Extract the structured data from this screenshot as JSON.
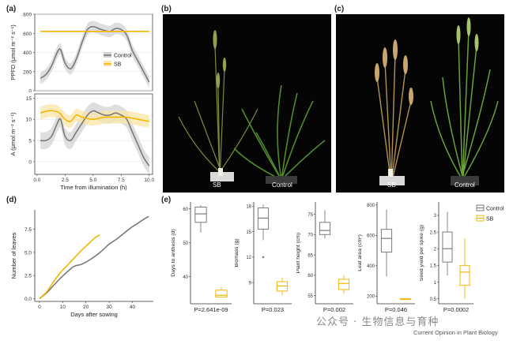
{
  "panel_labels": {
    "a": "(a)",
    "b": "(b)",
    "c": "(c)",
    "d": "(d)",
    "e": "(e)"
  },
  "photos": {
    "b": {
      "left_label": "SB",
      "right_label": "Control"
    },
    "c": {
      "left_label": "SB",
      "right_label": "Control"
    }
  },
  "colors": {
    "control": "#7a7a7a",
    "sb": "#f2b705",
    "band_control": "#d3d3d3",
    "band_sb": "#fae6a8"
  },
  "chart_data": [
    {
      "id": "a-top",
      "type": "line",
      "ylabel": "PPFD (μmol m⁻² s⁻¹)",
      "ylim": [
        0,
        800
      ],
      "yticks": [
        0,
        200,
        400,
        600,
        800
      ],
      "xlim": [
        -0.2,
        10.3
      ],
      "legend": [
        "Control",
        "SB"
      ],
      "legend_position": "right",
      "series": [
        {
          "name": "Control",
          "band": 60,
          "x": [
            0.3,
            0.8,
            1.3,
            1.8,
            2.1,
            2.5,
            3.0,
            3.5,
            4.0,
            4.5,
            5.0,
            5.5,
            6.0,
            6.5,
            7.0,
            7.5,
            8.0,
            8.5,
            9.0,
            9.5,
            10.0
          ],
          "y": [
            130,
            170,
            260,
            400,
            430,
            290,
            230,
            330,
            500,
            640,
            670,
            650,
            630,
            620,
            650,
            640,
            580,
            420,
            310,
            200,
            90
          ]
        },
        {
          "name": "SB",
          "band": 8,
          "x": [
            0.3,
            10.0
          ],
          "y": [
            620,
            620
          ]
        }
      ]
    },
    {
      "id": "a-bottom",
      "type": "line",
      "ylabel": "A (μmol m⁻² s⁻¹)",
      "xlabel": "Time from illumination (h)",
      "ylim": [
        -3,
        16
      ],
      "yticks": [
        0,
        5,
        10,
        15
      ],
      "xlim": [
        -0.2,
        10.3
      ],
      "xticks": [
        0.0,
        2.5,
        5.0,
        7.5,
        10.0
      ],
      "xticklabels": [
        "0.0",
        "2.5",
        "5.0",
        "7.5",
        "10.0"
      ],
      "series": [
        {
          "name": "Control",
          "band": 2,
          "x": [
            0.3,
            0.8,
            1.3,
            1.8,
            2.1,
            2.5,
            3.0,
            3.5,
            4.0,
            4.5,
            5.0,
            5.5,
            6.0,
            6.5,
            7.0,
            7.5,
            8.0,
            8.5,
            9.0,
            9.5,
            10.0
          ],
          "y": [
            5,
            5,
            6,
            9,
            10,
            6,
            5,
            7,
            9,
            11,
            12,
            11.5,
            11,
            11,
            11.5,
            11,
            10,
            7,
            4,
            1,
            -1
          ]
        },
        {
          "name": "SB",
          "band": 1.5,
          "x": [
            0.3,
            1.0,
            1.5,
            2.0,
            2.5,
            3.0,
            3.5,
            4.0,
            5.0,
            6.0,
            7.0,
            8.0,
            9.0,
            10.0
          ],
          "y": [
            11.5,
            12,
            12,
            11.5,
            10,
            9.5,
            11,
            10.5,
            10,
            10.5,
            10.5,
            10.5,
            10,
            9.5
          ]
        }
      ]
    },
    {
      "id": "d",
      "type": "line",
      "xlabel": "Days after sowing",
      "ylabel": "Number of leaves",
      "xlim": [
        -2,
        49
      ],
      "ylim": [
        -0.3,
        9.6
      ],
      "xticks": [
        0,
        10,
        20,
        30,
        40
      ],
      "yticks": [
        0.0,
        2.5,
        5.0,
        7.5
      ],
      "yticklabels": [
        "0.0",
        "2.5",
        "5.0",
        "7.5"
      ],
      "series": [
        {
          "name": "Control",
          "x": [
            0,
            3,
            6,
            9,
            12,
            15,
            18,
            21,
            24,
            27,
            30,
            33,
            36,
            39,
            42,
            45,
            47
          ],
          "y": [
            0,
            0.6,
            1.4,
            2.2,
            2.9,
            3.5,
            3.7,
            4.1,
            4.6,
            5.2,
            5.9,
            6.4,
            7.0,
            7.6,
            8.1,
            8.6,
            8.9
          ]
        },
        {
          "name": "SB",
          "x": [
            0,
            3,
            6,
            9,
            12,
            15,
            18,
            21,
            24,
            26
          ],
          "y": [
            0,
            0.7,
            1.8,
            2.8,
            3.6,
            4.4,
            5.2,
            5.9,
            6.6,
            6.9
          ]
        }
      ]
    },
    {
      "id": "e-days",
      "type": "box",
      "ylabel": "Days to anthesis (d)",
      "ylim": [
        32,
        62
      ],
      "yticks": [
        40,
        50,
        60
      ],
      "pvalue": "P=2.641e-09",
      "boxes": [
        {
          "group": "Control",
          "min": 53,
          "q1": 56,
          "median": 58.5,
          "q3": 60.5,
          "max": 61
        },
        {
          "group": "SB",
          "min": 34,
          "q1": 34,
          "median": 34.5,
          "q3": 36,
          "max": 37
        }
      ]
    },
    {
      "id": "e-biomass",
      "type": "box",
      "ylabel": "Biomass (g)",
      "ylim": [
        6.5,
        18.5
      ],
      "yticks": [
        9,
        12,
        15,
        18
      ],
      "pvalue": "P=0.023",
      "boxes": [
        {
          "group": "Control",
          "min": 14,
          "q1": 15.3,
          "median": 16.6,
          "q3": 17.8,
          "max": 18.2,
          "outliers": [
            12
          ]
        },
        {
          "group": "SB",
          "min": 7.5,
          "q1": 8,
          "median": 8.6,
          "q3": 9.1,
          "max": 9.6
        }
      ]
    },
    {
      "id": "e-height",
      "type": "box",
      "ylabel": "Plant height (cm)",
      "ylim": [
        53,
        78
      ],
      "yticks": [
        55,
        60,
        65,
        70,
        75
      ],
      "pvalue": "P=0.002",
      "boxes": [
        {
          "group": "Control",
          "min": 69,
          "q1": 70,
          "median": 71,
          "q3": 73,
          "max": 76
        },
        {
          "group": "SB",
          "min": 55.5,
          "q1": 56.5,
          "median": 58,
          "q3": 59,
          "max": 60
        }
      ]
    },
    {
      "id": "e-leaf",
      "type": "box",
      "ylabel": "Leaf area (cm²)",
      "ylim": [
        150,
        820
      ],
      "yticks": [
        200,
        400,
        600,
        800
      ],
      "pvalue": "P=0.046",
      "boxes": [
        {
          "group": "Control",
          "min": 330,
          "q1": 490,
          "median": 580,
          "q3": 640,
          "max": 770
        },
        {
          "group": "SB",
          "min": 175,
          "q1": 178,
          "median": 180,
          "q3": 183,
          "max": 186
        }
      ]
    },
    {
      "id": "e-seed",
      "type": "box",
      "ylabel": "Seed yield per spike (g)",
      "ylim": [
        0.35,
        3.4
      ],
      "yticks": [
        0.5,
        1.0,
        1.5,
        2.0,
        2.5,
        3.0
      ],
      "pvalue": "P=0.0002",
      "legend": [
        "Control",
        "SB"
      ],
      "legend_position": "top-right",
      "boxes": [
        {
          "group": "Control",
          "min": 1.2,
          "q1": 1.6,
          "median": 2.0,
          "q3": 2.5,
          "max": 3.1
        },
        {
          "group": "SB",
          "min": 0.5,
          "q1": 0.9,
          "median": 1.3,
          "q3": 1.5,
          "max": 2.3
        }
      ]
    }
  ],
  "watermark": "公众号 · 生物信息与育种",
  "journal": "Current Opinion in Plant Biology"
}
